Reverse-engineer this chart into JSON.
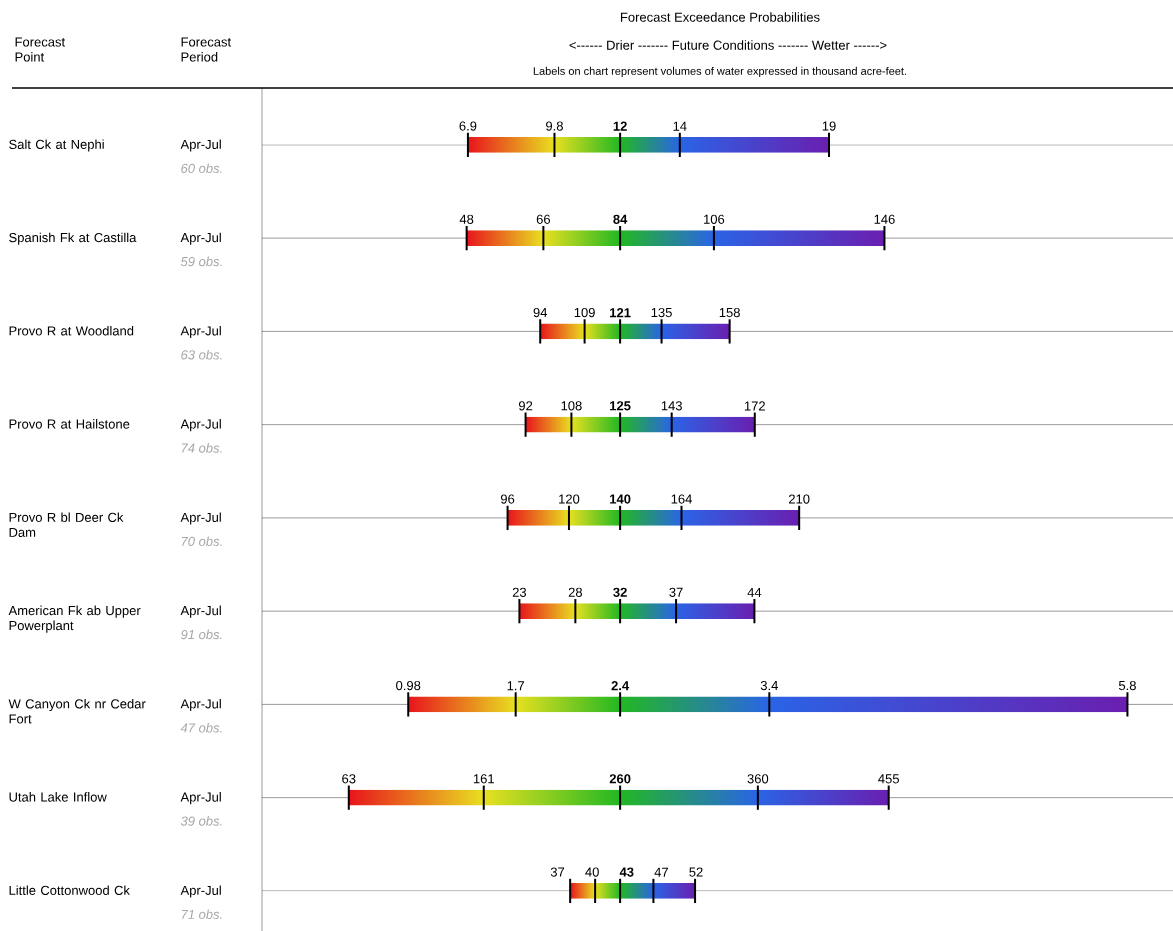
{
  "chart_data": {
    "type": "other",
    "title": "Forecast Exceedance Probabilities",
    "subtitle": "<------ Drier ------- Future Conditions ------- Wetter ------>",
    "categories": [
      "Salt Ck at Nephi",
      "Spanish Fk at Castilla",
      "Provo R at Woodland",
      "Provo R at Hailstone",
      "Provo R bl Deer Ck Dam",
      "American Fk ab Upper Powerplant",
      "W Canyon Ck nr Cedar Fort",
      "Utah Lake Inflow",
      "Little Cottonwood Ck"
    ],
    "series": [
      {
        "color": "#e8141c",
        "values": [
          6.9,
          48,
          94,
          92,
          96,
          23,
          0.98,
          63,
          37
        ]
      },
      {
        "color": "#e8e020",
        "values": [
          9.8,
          66,
          109,
          108,
          120,
          28,
          1.7,
          161,
          40
        ]
      },
      {
        "color": "#22b822",
        "values": [
          12,
          84,
          121,
          125,
          140,
          32,
          2.4,
          260,
          43
        ]
      },
      {
        "color": "#2a64e6",
        "values": [
          14,
          106,
          135,
          143,
          164,
          37,
          3.4,
          360,
          47
        ]
      },
      {
        "color": "#6a1fb0",
        "values": [
          19,
          146,
          158,
          172,
          210,
          44,
          5.8,
          455,
          52
        ]
      }
    ],
    "data_labels": true,
    "annotations": [
      "Forecast Point",
      "Forecast Period",
      "Labels on chart represent volumes of water expressed in thousand acre-feet.",
      "Apr-Jul",
      "60 obs.",
      "Apr-Jul",
      "59 obs.",
      "Apr-Jul",
      "63 obs.",
      "Apr-Jul",
      "74 obs.",
      "Apr-Jul",
      "70 obs.",
      "Apr-Jul",
      "91 obs.",
      "Apr-Jul",
      "47 obs.",
      "Apr-Jul",
      "39 obs.",
      "Apr-Jul",
      "71 obs."
    ]
  }
}
